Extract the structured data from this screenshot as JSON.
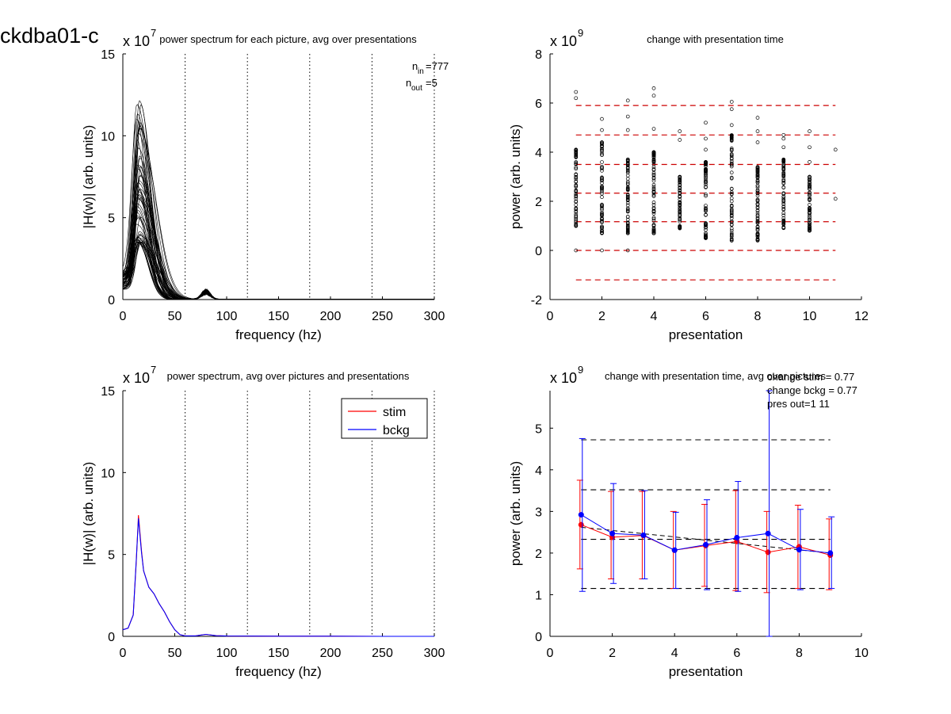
{
  "figure": {
    "suptitle": "ckdba01-c"
  },
  "colors": {
    "stim": "#ff0000",
    "bckg": "#0000ff",
    "axes": "#000000",
    "dashed_red": "#cc0000",
    "dashed_black": "#000000"
  },
  "chart_data": [
    {
      "id": "top-left",
      "type": "line",
      "title": "power spectrum for each picture, avg over presentations",
      "xlabel": "frequency (hz)",
      "ylabel": "|H(w)| (arb. units)",
      "y_exponent": "x 10",
      "y_exponent_power": "7",
      "xlim": [
        0,
        300
      ],
      "ylim": [
        0,
        15
      ],
      "xticks": [
        0,
        50,
        100,
        150,
        200,
        250,
        300
      ],
      "yticks": [
        0,
        5,
        10,
        15
      ],
      "vlines": [
        60,
        120,
        180,
        240,
        300
      ],
      "annotation": {
        "n_in_label": "n",
        "n_in_sub": "in",
        "n_in_value": "=777",
        "n_out_label": "n",
        "n_out_sub": "out",
        "n_out_value": "=5"
      },
      "series_count": 60,
      "peak_freq_range": [
        13,
        18
      ],
      "peak_value_range": [
        3.5,
        12.2
      ],
      "secondary_peak": {
        "x": 80,
        "y": 0.45
      }
    },
    {
      "id": "top-right",
      "type": "scatter",
      "title": "change with presentation time",
      "xlabel": "presentation",
      "ylabel": "power (arb. units)",
      "y_exponent": "x 10",
      "y_exponent_power": "9",
      "xlim": [
        0,
        12
      ],
      "ylim": [
        -2,
        8
      ],
      "xticks": [
        0,
        2,
        4,
        6,
        8,
        10,
        12
      ],
      "yticks": [
        -2,
        0,
        2,
        4,
        6,
        8
      ],
      "hlines": [
        -1.2,
        0,
        1.17,
        2.33,
        3.5,
        4.7,
        5.9
      ],
      "hline_xrange": [
        1,
        11
      ],
      "presentations": [
        1,
        2,
        3,
        4,
        5,
        6,
        7,
        8,
        9,
        10,
        11
      ],
      "column_ranges": [
        [
          1.0,
          4.1
        ],
        [
          0.7,
          4.4
        ],
        [
          0.7,
          3.7
        ],
        [
          0.7,
          4.0
        ],
        [
          0.9,
          3.0
        ],
        [
          0.5,
          3.6
        ],
        [
          0.4,
          4.7
        ],
        [
          0.4,
          3.4
        ],
        [
          0.9,
          3.7
        ],
        [
          0.8,
          3.0
        ],
        [
          2.1,
          4.1
        ]
      ],
      "outliers": [
        [
          1,
          0.0
        ],
        [
          1,
          6.2
        ],
        [
          1,
          6.45
        ],
        [
          2,
          0.0
        ],
        [
          2,
          4.9
        ],
        [
          2,
          5.35
        ],
        [
          3,
          0.0
        ],
        [
          3,
          4.9
        ],
        [
          3,
          5.45
        ],
        [
          3,
          6.1
        ],
        [
          4,
          4.95
        ],
        [
          4,
          6.3
        ],
        [
          4,
          6.6
        ],
        [
          5,
          4.5
        ],
        [
          5,
          4.85
        ],
        [
          6,
          4.1
        ],
        [
          6,
          4.55
        ],
        [
          6,
          5.2
        ],
        [
          7,
          5.1
        ],
        [
          7,
          5.75
        ],
        [
          7,
          6.05
        ],
        [
          8,
          4.4
        ],
        [
          8,
          4.85
        ],
        [
          8,
          5.4
        ],
        [
          9,
          4.2
        ],
        [
          9,
          4.55
        ],
        [
          9,
          4.7
        ],
        [
          10,
          3.6
        ],
        [
          10,
          4.2
        ],
        [
          10,
          4.85
        ],
        [
          11,
          2.1
        ],
        [
          11,
          4.1
        ]
      ]
    },
    {
      "id": "bottom-left",
      "type": "line",
      "title": "power spectrum, avg over pictures and presentations",
      "xlabel": "frequency (hz)",
      "ylabel": "|H(w)| (arb. units)",
      "y_exponent": "x 10",
      "y_exponent_power": "7",
      "xlim": [
        0,
        300
      ],
      "ylim": [
        0,
        15
      ],
      "xticks": [
        0,
        50,
        100,
        150,
        200,
        250,
        300
      ],
      "yticks": [
        0,
        5,
        10,
        15
      ],
      "vlines": [
        60,
        120,
        180,
        240,
        300
      ],
      "legend": {
        "placement": "top-right",
        "entries": [
          "stim",
          "bckg"
        ]
      },
      "series": [
        {
          "name": "stim",
          "x": [
            0,
            5,
            10,
            13,
            15,
            18,
            20,
            25,
            30,
            35,
            40,
            45,
            50,
            55,
            60,
            70,
            80,
            90,
            100,
            150,
            200,
            250,
            300
          ],
          "y": [
            0.4,
            0.5,
            1.3,
            4.6,
            7.4,
            5.2,
            4.0,
            3.0,
            2.6,
            2.0,
            1.5,
            0.9,
            0.4,
            0.1,
            0.03,
            0.03,
            0.12,
            0.04,
            0.02,
            0.01,
            0.01,
            0.0,
            0.0
          ]
        },
        {
          "name": "bckg",
          "x": [
            0,
            5,
            10,
            13,
            15,
            18,
            20,
            25,
            30,
            35,
            40,
            45,
            50,
            55,
            60,
            70,
            80,
            90,
            100,
            150,
            200,
            250,
            300
          ],
          "y": [
            0.4,
            0.5,
            1.3,
            4.7,
            7.2,
            5.1,
            4.0,
            3.0,
            2.6,
            2.0,
            1.5,
            0.9,
            0.4,
            0.1,
            0.03,
            0.03,
            0.12,
            0.04,
            0.02,
            0.01,
            0.01,
            0.0,
            0.0
          ]
        }
      ]
    },
    {
      "id": "bottom-right",
      "type": "line",
      "title": "change with presentation time, avg over pictures",
      "xlabel": "presentation",
      "ylabel": "power (arb. units)",
      "y_exponent": "x 10",
      "y_exponent_power": "9",
      "xlim": [
        0,
        10
      ],
      "ylim": [
        0,
        5.9
      ],
      "xticks": [
        0,
        2,
        4,
        6,
        8,
        10
      ],
      "yticks": [
        0,
        1,
        2,
        3,
        4,
        5
      ],
      "hlines": [
        1.15,
        2.33,
        3.52,
        4.72
      ],
      "hline_xrange": [
        1,
        9
      ],
      "annotation": {
        "line1": "change stim = 0.77",
        "line2": "change bckg = 0.77",
        "line3": "pres out=1 11"
      },
      "series": [
        {
          "name": "stim",
          "x": [
            1,
            2,
            3,
            4,
            5,
            6,
            7,
            8,
            9
          ],
          "y": [
            2.68,
            2.38,
            2.42,
            2.07,
            2.18,
            2.28,
            2.02,
            2.15,
            1.95
          ],
          "err_low": [
            1.62,
            1.38,
            1.38,
            1.15,
            1.2,
            1.1,
            1.05,
            1.15,
            1.12
          ],
          "err_high": [
            3.75,
            3.48,
            3.48,
            3.0,
            3.17,
            3.5,
            3.0,
            3.15,
            2.82
          ]
        },
        {
          "name": "bckg",
          "x": [
            1,
            2,
            3,
            4,
            5,
            6,
            7,
            8,
            9
          ],
          "y": [
            2.92,
            2.47,
            2.43,
            2.07,
            2.2,
            2.37,
            2.47,
            2.08,
            2.0
          ],
          "err_low": [
            1.08,
            1.27,
            1.38,
            1.15,
            1.12,
            1.08,
            0.0,
            1.12,
            1.15
          ],
          "err_high": [
            4.75,
            3.67,
            3.5,
            2.98,
            3.28,
            3.72,
            5.9,
            3.05,
            2.87
          ]
        }
      ],
      "trend": {
        "x": [
          1,
          9
        ],
        "y": [
          2.62,
          2.0
        ]
      }
    }
  ]
}
